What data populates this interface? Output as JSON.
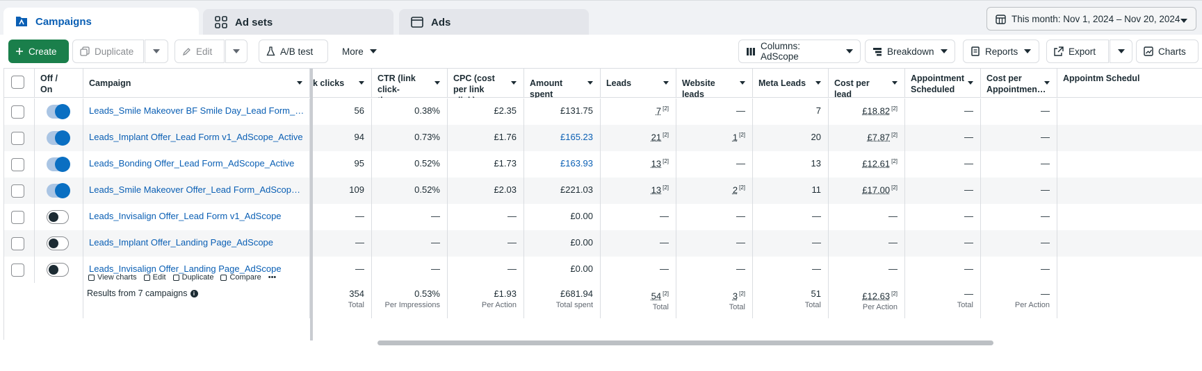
{
  "tabs": [
    {
      "label": "Campaigns",
      "icon": "folder-icon"
    },
    {
      "label": "Ad sets",
      "icon": "grid-icon"
    },
    {
      "label": "Ads",
      "icon": "browser-window-icon"
    }
  ],
  "date_range": {
    "label": "This month: Nov 1, 2024 – Nov 20, 2024",
    "icon": "calendar-icon"
  },
  "toolbar": {
    "create": "Create",
    "duplicate": "Duplicate",
    "edit": "Edit",
    "ab_test": "A/B test",
    "more": "More",
    "columns": "Columns: AdScope",
    "breakdown": "Breakdown",
    "reports": "Reports",
    "export": "Export",
    "charts": "Charts"
  },
  "table": {
    "headers": {
      "off_on": "Off / On",
      "campaign": "Campaign",
      "link_clicks": "k clicks",
      "ctr": "CTR (link click-throug…",
      "cpc": "CPC (cost per link click)",
      "amount_spent": "Amount spent",
      "leads": "Leads",
      "website_leads": "Website leads",
      "meta_leads": "Meta Leads",
      "cost_per_lead": "Cost per lead",
      "appt_scheduled": "Appointment Scheduled",
      "cost_per_appt": "Cost per Appointmen…",
      "appt_sched2": "Appointm Schedul"
    },
    "rows": [
      {
        "status": "on",
        "name": "Leads_Smile Makeover BF Smile Day_Lead Form_AdScop…",
        "clicks": "56",
        "ctr": "0.38%",
        "cpc": "£2.35",
        "spent": "£131.75",
        "leads": "7",
        "web_leads": "—",
        "meta_leads": "7",
        "cpl": "£18.82",
        "appt": "—",
        "cpa": "—"
      },
      {
        "status": "on",
        "name": "Leads_Implant Offer_Lead Form v1_AdScope_Active",
        "clicks": "94",
        "ctr": "0.73%",
        "cpc": "£1.76",
        "spent": "£165.23",
        "leads": "21",
        "web_leads": "1",
        "meta_leads": "20",
        "cpl": "£7.87",
        "appt": "—",
        "cpa": "—"
      },
      {
        "status": "on",
        "name": "Leads_Bonding Offer_Lead Form_AdScope_Active",
        "clicks": "95",
        "ctr": "0.52%",
        "cpc": "£1.73",
        "spent": "£163.93",
        "leads": "13",
        "web_leads": "—",
        "meta_leads": "13",
        "cpl": "£12.61",
        "appt": "—",
        "cpa": "—"
      },
      {
        "status": "on",
        "name": "Leads_Smile Makeover Offer_Lead Form_AdScope_Active",
        "clicks": "109",
        "ctr": "0.52%",
        "cpc": "£2.03",
        "spent": "£221.03",
        "leads": "13",
        "web_leads": "2",
        "meta_leads": "11",
        "cpl": "£17.00",
        "appt": "—",
        "cpa": "—"
      },
      {
        "status": "off",
        "name": "Leads_Invisalign Offer_Lead Form v1_AdScope",
        "clicks": "—",
        "ctr": "—",
        "cpc": "—",
        "spent": "£0.00",
        "leads": "—",
        "web_leads": "—",
        "meta_leads": "—",
        "cpl": "—",
        "appt": "—",
        "cpa": "—"
      },
      {
        "status": "off",
        "name": "Leads_Implant Offer_Landing Page_AdScope",
        "clicks": "—",
        "ctr": "—",
        "cpc": "—",
        "spent": "£0.00",
        "leads": "—",
        "web_leads": "—",
        "meta_leads": "—",
        "cpl": "—",
        "appt": "—",
        "cpa": "—"
      },
      {
        "status": "off",
        "name": "Leads_Invisalign Offer_Landing Page_AdScope",
        "clicks": "—",
        "ctr": "—",
        "cpc": "—",
        "spent": "£0.00",
        "leads": "—",
        "web_leads": "—",
        "meta_leads": "—",
        "cpl": "—",
        "appt": "—",
        "cpa": "—"
      }
    ],
    "superscript": "[2]",
    "row_actions": [
      "View charts",
      "Edit",
      "Duplicate",
      "Compare",
      "•••"
    ],
    "totals": {
      "label": "Results from 7 campaigns",
      "clicks": "354",
      "clicks_sub": "Total",
      "ctr": "0.53%",
      "ctr_sub": "Per Impressions",
      "cpc": "£1.93",
      "cpc_sub": "Per Action",
      "spent": "£681.94",
      "spent_sub": "Total spent",
      "leads": "54",
      "leads_sub": "Total",
      "web_leads": "3",
      "web_leads_sub": "Total",
      "meta_leads": "51",
      "meta_leads_sub": "Total",
      "cpl": "£12.63",
      "cpl_sub": "Per Action",
      "appt": "—",
      "appt_sub": "Total",
      "cpa": "—",
      "cpa_sub": "Per Action"
    }
  },
  "colors": {
    "accent": "#0a5fb4",
    "create_button": "#1a7f4b",
    "toggle_on": "#0a6fc2"
  }
}
